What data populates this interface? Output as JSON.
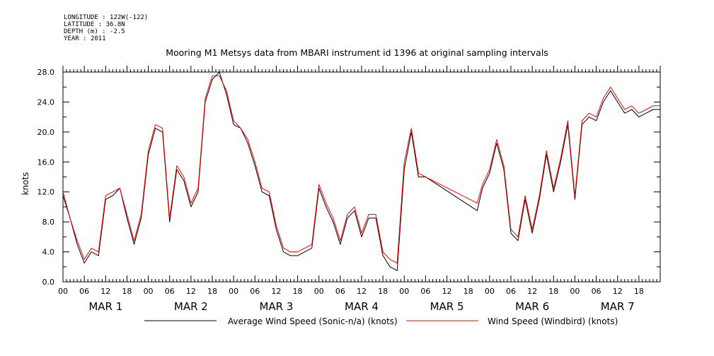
{
  "meta": {
    "longitude": "LONGITUDE : 122W(-122)",
    "latitude": "LATITUDE : 36.8N",
    "depth": "DEPTH (m) : -2.5",
    "year": "YEAR : 2011"
  },
  "chart_data": {
    "type": "line",
    "title": "Mooring M1 Metsys data from MBARI instrument id 1396 at original sampling intervals",
    "ylabel": "knots",
    "xlabel": "",
    "ylim": [
      0,
      28
    ],
    "xlim_hours": [
      0,
      168
    ],
    "y_ticks": [
      "0.0",
      "4.0",
      "8.0",
      "12.0",
      "16.0",
      "20.0",
      "24.0",
      "28.0"
    ],
    "hour_tick_labels": [
      "00",
      "06",
      "12",
      "18"
    ],
    "day_labels": [
      "MAR  1",
      "MAR  2",
      "MAR  3",
      "MAR  4",
      "MAR  5",
      "MAR  6",
      "MAR  7"
    ],
    "grid": false,
    "legend_position": "bottom",
    "x_units": "hours since Mar 1 2011 00:00",
    "series": [
      {
        "name": "Average Wind Speed (Sonic-n/a) (knots)",
        "color": "#000000",
        "x": [
          0,
          2,
          4,
          6,
          8,
          10,
          12,
          14,
          16,
          18,
          20,
          22,
          24,
          26,
          28,
          30,
          32,
          34,
          36,
          38,
          40,
          42,
          44,
          46,
          48,
          50,
          52,
          54,
          56,
          58,
          60,
          62,
          64,
          66,
          68,
          70,
          72,
          74,
          76,
          78,
          80,
          82,
          84,
          86,
          88,
          90,
          92,
          94,
          96,
          98,
          100,
          102,
          116.5,
          118,
          120,
          122,
          124,
          126,
          128,
          130,
          132,
          134,
          136,
          138,
          140,
          142,
          144,
          146,
          148,
          150,
          152,
          154,
          156,
          158,
          160,
          162,
          164,
          166,
          168
        ],
        "y": [
          11.5,
          8.5,
          5,
          2.5,
          4,
          3.5,
          11,
          11.5,
          12.5,
          8.5,
          5,
          8.5,
          17,
          20.5,
          20,
          8,
          15,
          13.5,
          10,
          12,
          24,
          27,
          28,
          25,
          21,
          20.5,
          18.5,
          15.5,
          12,
          11.5,
          7,
          4,
          3.5,
          3.5,
          4,
          4.5,
          12.5,
          10,
          8,
          5,
          8.5,
          9.5,
          6,
          8.5,
          8.5,
          3.5,
          2,
          1.5,
          15,
          20,
          14,
          14,
          9.5,
          12.5,
          14.5,
          18.5,
          15,
          6.5,
          5.5,
          11,
          6.5,
          11,
          17,
          12,
          16,
          21,
          11,
          21,
          22,
          21.5,
          24,
          25.5,
          24,
          22.5,
          23,
          22,
          22.5,
          23,
          23
        ]
      },
      {
        "name": "Wind Speed (Windbird) (knots)",
        "color": "#ff0000",
        "x": [
          0,
          2,
          4,
          6,
          8,
          10,
          12,
          14,
          16,
          18,
          20,
          22,
          24,
          26,
          28,
          30,
          32,
          34,
          36,
          38,
          40,
          42,
          44,
          46,
          48,
          50,
          52,
          54,
          56,
          58,
          60,
          62,
          64,
          66,
          68,
          70,
          72,
          74,
          76,
          78,
          80,
          82,
          84,
          86,
          88,
          90,
          92,
          94,
          96,
          98,
          100,
          102,
          116.5,
          118,
          120,
          122,
          124,
          126,
          128,
          130,
          132,
          134,
          136,
          138,
          140,
          142,
          144,
          146,
          148,
          150,
          152,
          154,
          156,
          158,
          160,
          162,
          164,
          166,
          168
        ],
        "y": [
          12,
          8.5,
          5.5,
          3,
          4.5,
          4,
          11.5,
          12,
          12.5,
          9,
          5.5,
          9,
          17.5,
          21,
          20.5,
          8.5,
          15.5,
          14,
          10.5,
          12.5,
          24.5,
          27.5,
          27.5,
          25.5,
          21.5,
          20.5,
          19,
          16,
          12.5,
          12,
          7.5,
          4.5,
          4,
          4,
          4.5,
          5,
          13,
          10.5,
          8.5,
          5.5,
          9,
          10,
          6.5,
          9,
          9,
          4,
          3,
          2.5,
          16,
          20.5,
          14.5,
          14,
          10.5,
          13,
          15,
          19,
          15.5,
          7,
          6,
          11.5,
          7,
          11.5,
          17.5,
          12.5,
          16.5,
          21.5,
          11.5,
          21.5,
          22.5,
          22,
          24.5,
          26,
          24.5,
          23,
          23.5,
          22.5,
          23,
          23.5,
          23.5
        ]
      }
    ]
  }
}
